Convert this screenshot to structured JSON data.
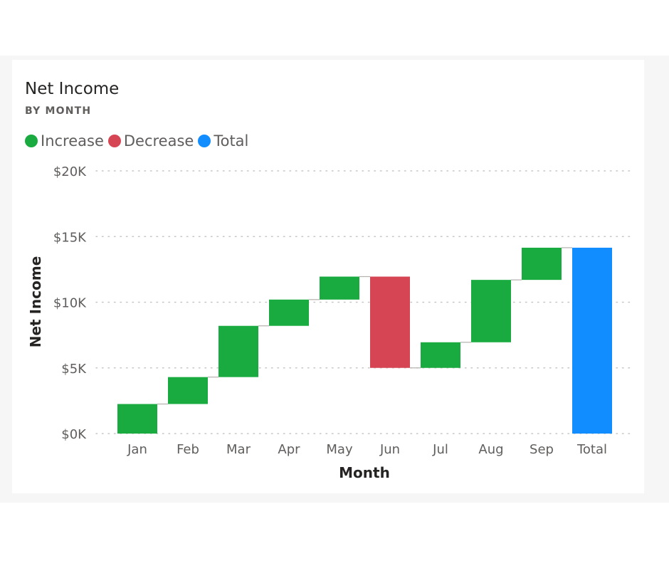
{
  "chart_data": {
    "type": "waterfall",
    "title": "Net Income",
    "subtitle": "BY MONTH",
    "xlabel": "Month",
    "ylabel": "Net Income",
    "ylim": [
      0,
      20000
    ],
    "yticks": [
      {
        "value": 0,
        "label": "$0K"
      },
      {
        "value": 5000,
        "label": "$5K"
      },
      {
        "value": 10000,
        "label": "$10K"
      },
      {
        "value": 15000,
        "label": "$15K"
      },
      {
        "value": 20000,
        "label": "$20K"
      }
    ],
    "grid": true,
    "legend_position": "top-left",
    "legend": [
      {
        "name": "Increase",
        "color": "#1aab40"
      },
      {
        "name": "Decrease",
        "color": "#d64554"
      },
      {
        "name": "Total",
        "color": "#118dff"
      }
    ],
    "categories": [
      "Jan",
      "Feb",
      "Mar",
      "Apr",
      "May",
      "Jun",
      "Jul",
      "Aug",
      "Sep",
      "Total"
    ],
    "bars": [
      {
        "category": "Jan",
        "kind": "Increase",
        "start": 0,
        "end": 2250
      },
      {
        "category": "Feb",
        "kind": "Increase",
        "start": 2250,
        "end": 4300
      },
      {
        "category": "Mar",
        "kind": "Increase",
        "start": 4300,
        "end": 8200
      },
      {
        "category": "Apr",
        "kind": "Increase",
        "start": 8200,
        "end": 10200
      },
      {
        "category": "May",
        "kind": "Increase",
        "start": 10200,
        "end": 11950
      },
      {
        "category": "Jun",
        "kind": "Decrease",
        "start": 11950,
        "end": 5000
      },
      {
        "category": "Jul",
        "kind": "Increase",
        "start": 5000,
        "end": 6950
      },
      {
        "category": "Aug",
        "kind": "Increase",
        "start": 6950,
        "end": 11700
      },
      {
        "category": "Sep",
        "kind": "Increase",
        "start": 11700,
        "end": 14150
      },
      {
        "category": "Total",
        "kind": "Total",
        "start": 0,
        "end": 14150
      }
    ]
  }
}
